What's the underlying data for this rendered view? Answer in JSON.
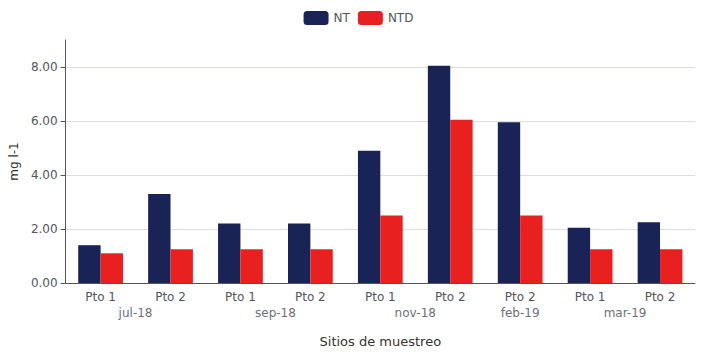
{
  "chart_data": {
    "type": "bar",
    "categories": [
      "Pto 1",
      "Pto 2",
      "Pto 1",
      "Pto 2",
      "Pto 1",
      "Pto 2",
      "Pto 2",
      "Pto 1",
      "Pto 2"
    ],
    "category_groups": [
      "jul-18",
      "jul-18",
      "sep-18",
      "sep-18",
      "nov-18",
      "nov-18",
      "feb-19",
      "mar-19",
      "mar-19"
    ],
    "series": [
      {
        "name": "NT",
        "color": "#1a2356",
        "values": [
          1.4,
          3.3,
          2.2,
          2.2,
          4.9,
          8.05,
          5.95,
          2.05,
          2.25
        ]
      },
      {
        "name": "NTD",
        "color": "#e82020",
        "values": [
          1.1,
          1.25,
          1.25,
          1.25,
          2.5,
          6.05,
          2.5,
          1.25,
          1.25
        ]
      }
    ],
    "xlabel": "Sitios de muestreo",
    "ylabel": "mg l-1",
    "ylim": [
      0,
      9.0
    ],
    "yticks": [
      {
        "value": 0,
        "label": "0.00"
      },
      {
        "value": 2,
        "label": "2.00"
      },
      {
        "value": 4,
        "label": "4.00"
      },
      {
        "value": 6,
        "label": "6.00"
      },
      {
        "value": 8,
        "label": "8.00"
      }
    ],
    "grid": true,
    "legend": "top"
  }
}
